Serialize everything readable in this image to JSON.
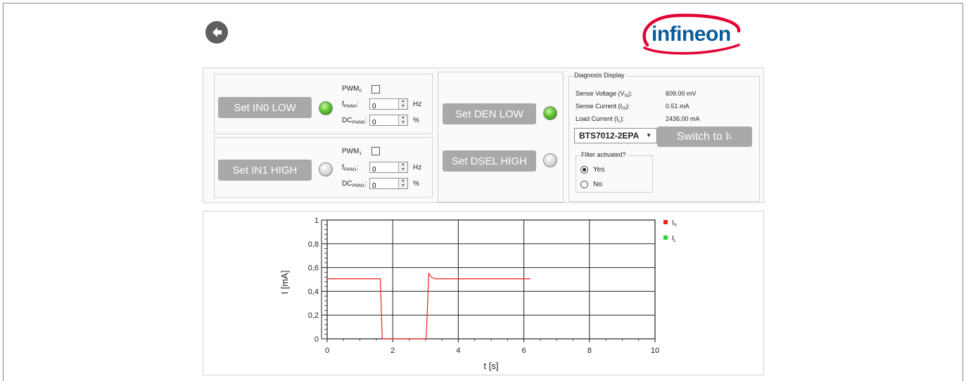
{
  "header": {
    "back_icon": "arrow-left-icon",
    "logo_text": "infineon"
  },
  "controls": {
    "in0": {
      "button_label": "Set IN0 LOW",
      "led_state": "on",
      "pwm_label": "PWM",
      "pwm_sub": "0",
      "pwm_checked": false,
      "freq_label": "f",
      "freq_sub": "PWM0",
      "freq_value": "0",
      "freq_unit": "Hz",
      "dc_label": "DC",
      "dc_sub": "PWM0",
      "dc_value": "0",
      "dc_unit": "%"
    },
    "in1": {
      "button_label": "Set IN1 HIGH",
      "led_state": "off",
      "pwm_label": "PWM",
      "pwm_sub": "1",
      "pwm_checked": false,
      "freq_label": "f",
      "freq_sub": "PWM1",
      "freq_value": "0",
      "freq_unit": "Hz",
      "dc_label": "DC",
      "dc_sub": "PWM1",
      "dc_value": "0",
      "dc_unit": "%"
    },
    "den": {
      "button_label": "Set DEN LOW",
      "led_state": "on"
    },
    "dsel": {
      "button_label": "Set DSEL HIGH",
      "led_state": "off"
    }
  },
  "diagnosis": {
    "title": "Diagnosis Display",
    "sense_voltage_label": "Sense Voltage (V",
    "sense_voltage_sub": "IS",
    "sense_voltage_value": "609.00 mV",
    "sense_current_label": "Sense Current (I",
    "sense_current_sub": "IS",
    "sense_current_value": "0.51 mA",
    "load_current_label": "Load Current (I",
    "load_current_sub": "L",
    "load_current_value": "2436.00 mA",
    "label_close": "):",
    "device_select": "BTS7012-2EPA",
    "switch_button": "Switch to I",
    "switch_button_sub": "L",
    "filter_title": "Filter activated?",
    "filter_options": [
      "Yes",
      "No"
    ],
    "filter_selected": "Yes"
  },
  "chart_data": {
    "type": "line",
    "xlabel": "t [s]",
    "ylabel": "I [mA]",
    "xlim": [
      0,
      10
    ],
    "ylim": [
      0,
      1
    ],
    "x_ticks": [
      "0",
      "2",
      "4",
      "6",
      "8",
      "10"
    ],
    "y_ticks": [
      "0",
      "0,2",
      "0,4",
      "0,6",
      "0,8",
      "1"
    ],
    "grid": true,
    "legend_position": "top-right",
    "series": [
      {
        "name": "I",
        "name_sub": "S",
        "color": "#e8211c",
        "x": [
          0,
          1.62,
          1.68,
          3.02,
          3.1,
          3.18,
          3.3,
          3.5,
          4.0,
          5.0,
          6.2
        ],
        "y": [
          0.505,
          0.505,
          0.0,
          0.0,
          0.55,
          0.52,
          0.505,
          0.505,
          0.505,
          0.505,
          0.505
        ]
      },
      {
        "name": "I",
        "name_sub": "L",
        "color": "#2fd12f",
        "x": [],
        "y": []
      }
    ]
  }
}
